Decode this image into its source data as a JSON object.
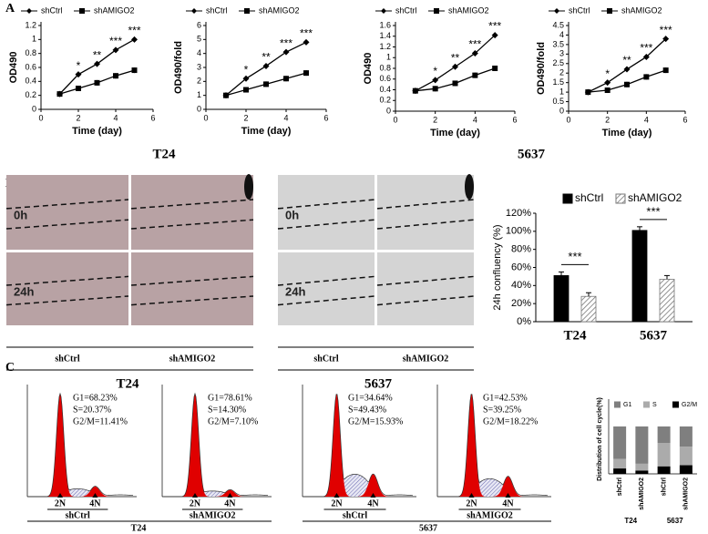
{
  "panels": {
    "A": {
      "letter": "A",
      "groups": [
        "T24",
        "5637"
      ]
    },
    "B": {
      "letter": "B",
      "images": [
        {
          "rows": [
            "0h",
            "24h"
          ],
          "cols": [
            "shCtrl",
            "shAMIGO2"
          ],
          "group": "T24"
        },
        {
          "rows": [
            "0h",
            "24h"
          ],
          "cols": [
            "shCtrl",
            "shAMIGO2"
          ],
          "group": "5637"
        }
      ]
    },
    "C": {
      "letter": "C",
      "groups": [
        "T24",
        "5637"
      ],
      "flow": [
        {
          "stats": [
            "G1=68.23%",
            "S=20.37%",
            "G2/M=11.41%"
          ],
          "peaks": [
            "2N",
            "4N"
          ],
          "sample": "shCtrl"
        },
        {
          "stats": [
            "G1=78.61%",
            "S=14.30%",
            "G2/M=7.10%"
          ],
          "peaks": [
            "2N",
            "4N"
          ],
          "sample": "shAMIGO2"
        },
        {
          "stats": [
            "G1=34.64%",
            "S=49.43%",
            "G2/M=15.93%"
          ],
          "peaks": [
            "2N",
            "4N"
          ],
          "sample": "shCtrl"
        },
        {
          "stats": [
            "G1=42.53%",
            "S=39.25%",
            "G2/M=18.22%"
          ],
          "peaks": [
            "2N",
            "4N"
          ],
          "sample": "shAMIGO2"
        }
      ]
    }
  },
  "chart_data": [
    {
      "type": "line",
      "x": [
        1,
        2,
        3,
        4,
        5
      ],
      "xlim": [
        0,
        6
      ],
      "xticks": [
        0,
        2,
        4,
        6
      ],
      "ylim": [
        0,
        1.2
      ],
      "yticks": [
        0,
        0.2,
        0.4,
        0.6,
        0.8,
        1,
        1.2
      ],
      "xlabel": "Time (day)",
      "ylabel": "OD490",
      "series": [
        {
          "name": "shCtrl",
          "color": "#000000",
          "marker": "diamond",
          "values": [
            0.22,
            0.5,
            0.65,
            0.85,
            1.0
          ]
        },
        {
          "name": "shAMIGO2",
          "color": "#000000",
          "marker": "square",
          "values": [
            0.22,
            0.3,
            0.38,
            0.48,
            0.56
          ]
        }
      ],
      "annotations": [
        {
          "x": 2,
          "text": "*"
        },
        {
          "x": 3,
          "text": "**"
        },
        {
          "x": 4,
          "text": "***"
        },
        {
          "x": 5,
          "text": "***"
        }
      ]
    },
    {
      "type": "line",
      "x": [
        1,
        2,
        3,
        4,
        5
      ],
      "xlim": [
        0,
        6
      ],
      "xticks": [
        0,
        2,
        4,
        6
      ],
      "ylim": [
        0,
        6
      ],
      "yticks": [
        0,
        1,
        2,
        3,
        4,
        5,
        6
      ],
      "xlabel": "Time (day)",
      "ylabel": "OD490/fold",
      "series": [
        {
          "name": "shCtrl",
          "color": "#000000",
          "marker": "diamond",
          "values": [
            1,
            2.2,
            3.1,
            4.1,
            4.8
          ]
        },
        {
          "name": "shAMIGO2",
          "color": "#000000",
          "marker": "square",
          "values": [
            1,
            1.4,
            1.8,
            2.2,
            2.6
          ]
        }
      ],
      "annotations": [
        {
          "x": 2,
          "text": "*"
        },
        {
          "x": 3,
          "text": "**"
        },
        {
          "x": 4,
          "text": "***"
        },
        {
          "x": 5,
          "text": "***"
        }
      ]
    },
    {
      "type": "line",
      "x": [
        1,
        2,
        3,
        4,
        5
      ],
      "xlim": [
        0,
        6
      ],
      "xticks": [
        0,
        2,
        4,
        6
      ],
      "ylim": [
        0,
        1.6
      ],
      "yticks": [
        0,
        0.2,
        0.4,
        0.6,
        0.8,
        1,
        1.2,
        1.4,
        1.6
      ],
      "xlabel": "Time (day)",
      "ylabel": "OD490",
      "series": [
        {
          "name": "shCtrl",
          "color": "#000000",
          "marker": "diamond",
          "values": [
            0.38,
            0.58,
            0.83,
            1.08,
            1.42
          ]
        },
        {
          "name": "shAMIGO2",
          "color": "#000000",
          "marker": "square",
          "values": [
            0.38,
            0.42,
            0.52,
            0.67,
            0.8
          ]
        }
      ],
      "annotations": [
        {
          "x": 2,
          "text": "*"
        },
        {
          "x": 3,
          "text": "**"
        },
        {
          "x": 4,
          "text": "***"
        },
        {
          "x": 5,
          "text": "***"
        }
      ]
    },
    {
      "type": "line",
      "x": [
        1,
        2,
        3,
        4,
        5
      ],
      "xlim": [
        0,
        6
      ],
      "xticks": [
        0,
        2,
        4,
        6
      ],
      "ylim": [
        0,
        4.5
      ],
      "yticks": [
        0,
        0.5,
        1,
        1.5,
        2,
        2.5,
        3,
        3.5,
        4,
        4.5
      ],
      "xlabel": "Time (day)",
      "ylabel": "OD490/fold",
      "series": [
        {
          "name": "shCtrl",
          "color": "#000000",
          "marker": "diamond",
          "values": [
            1,
            1.5,
            2.2,
            2.85,
            3.8
          ]
        },
        {
          "name": "shAMIGO2",
          "color": "#000000",
          "marker": "square",
          "values": [
            1,
            1.1,
            1.4,
            1.8,
            2.15
          ]
        }
      ],
      "annotations": [
        {
          "x": 2,
          "text": "*"
        },
        {
          "x": 3,
          "text": "**"
        },
        {
          "x": 4,
          "text": "***"
        },
        {
          "x": 5,
          "text": "***"
        }
      ]
    },
    {
      "type": "bar",
      "categories": [
        "T24",
        "5637"
      ],
      "ylabel": "24h confluency (%)",
      "ylim": [
        0,
        120
      ],
      "yticks": [
        {
          "value": 0,
          "label": "0%"
        },
        {
          "value": 20,
          "label": "20%"
        },
        {
          "value": 40,
          "label": "40%"
        },
        {
          "value": 60,
          "label": "60%"
        },
        {
          "value": 80,
          "label": "80%"
        },
        {
          "value": 100,
          "label": "100%"
        },
        {
          "value": 120,
          "label": "120%"
        }
      ],
      "series": [
        {
          "name": "shCtrl",
          "color": "#000000",
          "values": [
            51,
            101
          ]
        },
        {
          "name": "shAMIGO2",
          "color": "#777777",
          "pattern": "hatch",
          "values": [
            28,
            47
          ]
        }
      ],
      "annotations": [
        "***",
        "***"
      ]
    },
    {
      "type": "stacked_bar",
      "categories": [
        "shCtrl",
        "shAMIGO2",
        "shCtrl",
        "shAMIGO2"
      ],
      "groups": [
        "T24",
        "5637"
      ],
      "ylabel": "Distribution of cell cycle(%)",
      "ylim": [
        0,
        100
      ],
      "series": [
        {
          "name": "G1",
          "color": "#7f7f7f",
          "values": [
            68.23,
            78.61,
            34.64,
            42.53
          ]
        },
        {
          "name": "S",
          "color": "#ababab",
          "values": [
            20.37,
            14.3,
            49.43,
            39.25
          ]
        },
        {
          "name": "G2/M",
          "color": "#000000",
          "values": [
            11.41,
            7.1,
            15.93,
            18.22
          ]
        }
      ]
    }
  ]
}
